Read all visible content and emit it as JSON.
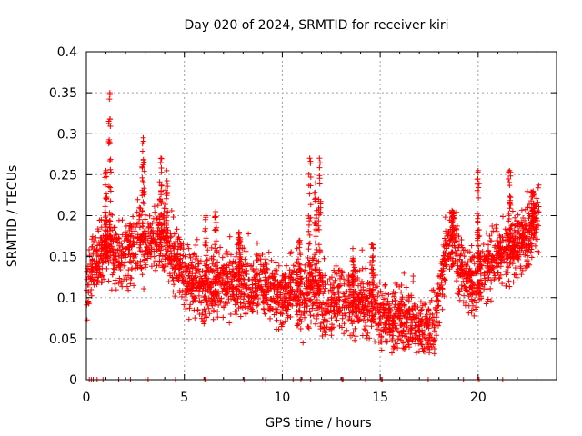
{
  "chart_data": {
    "type": "scatter",
    "title": "Day 020 of 2024, SRMTID for receiver kiri",
    "xlabel": "GPS time / hours",
    "ylabel": "SRMTID / TECUs",
    "xlim": [
      0,
      24
    ],
    "ylim": [
      0,
      0.4
    ],
    "x_ticks": [
      0,
      5,
      10,
      15,
      20
    ],
    "x_tick_labels": [
      "0",
      "5",
      "10",
      "15",
      "20"
    ],
    "y_ticks": [
      0,
      0.05,
      0.1,
      0.15,
      0.2,
      0.25,
      0.3,
      0.35,
      0.4
    ],
    "y_tick_labels": [
      "0",
      "0.05",
      "0.1",
      "0.15",
      "0.2",
      "0.25",
      "0.3",
      "0.35",
      "0.4"
    ],
    "grid": true,
    "marker": "plus",
    "colors": {
      "series": "#ff0000",
      "grid": "#a0a0a0",
      "axis": "#000000"
    },
    "trend_points": [
      [
        0.0,
        0.11
      ],
      [
        0.3,
        0.15
      ],
      [
        0.6,
        0.14
      ],
      [
        1.0,
        0.17
      ],
      [
        1.5,
        0.15
      ],
      [
        2.0,
        0.15
      ],
      [
        2.5,
        0.17
      ],
      [
        3.0,
        0.17
      ],
      [
        3.5,
        0.17
      ],
      [
        4.0,
        0.17
      ],
      [
        4.5,
        0.15
      ],
      [
        5.0,
        0.13
      ],
      [
        5.5,
        0.12
      ],
      [
        6.0,
        0.11
      ],
      [
        6.5,
        0.115
      ],
      [
        7.0,
        0.12
      ],
      [
        7.5,
        0.12
      ],
      [
        8.0,
        0.12
      ],
      [
        8.5,
        0.115
      ],
      [
        9.0,
        0.12
      ],
      [
        9.5,
        0.11
      ],
      [
        10.0,
        0.1
      ],
      [
        10.5,
        0.12
      ],
      [
        11.0,
        0.1
      ],
      [
        11.5,
        0.11
      ],
      [
        12.0,
        0.1
      ],
      [
        12.5,
        0.09
      ],
      [
        13.0,
        0.1
      ],
      [
        13.5,
        0.09
      ],
      [
        14.0,
        0.1
      ],
      [
        14.5,
        0.09
      ],
      [
        15.0,
        0.08
      ],
      [
        15.5,
        0.075
      ],
      [
        16.0,
        0.075
      ],
      [
        16.5,
        0.07
      ],
      [
        17.0,
        0.065
      ],
      [
        17.5,
        0.06
      ],
      [
        17.8,
        0.065
      ],
      [
        18.0,
        0.11
      ],
      [
        18.3,
        0.15
      ],
      [
        18.6,
        0.175
      ],
      [
        19.0,
        0.14
      ],
      [
        19.5,
        0.12
      ],
      [
        20.0,
        0.13
      ],
      [
        20.5,
        0.145
      ],
      [
        21.0,
        0.15
      ],
      [
        21.5,
        0.16
      ],
      [
        22.0,
        0.165
      ],
      [
        22.5,
        0.17
      ],
      [
        23.0,
        0.205
      ]
    ],
    "spikes": [
      {
        "x": 1.2,
        "peak": 0.35
      },
      {
        "x": 1.0,
        "peak": 0.255
      },
      {
        "x": 2.9,
        "peak": 0.295
      },
      {
        "x": 4.1,
        "peak": 0.255
      },
      {
        "x": 3.8,
        "peak": 0.27
      },
      {
        "x": 11.4,
        "peak": 0.27
      },
      {
        "x": 11.7,
        "peak": 0.24
      },
      {
        "x": 11.9,
        "peak": 0.27
      },
      {
        "x": 20.0,
        "peak": 0.255
      },
      {
        "x": 21.6,
        "peak": 0.255
      },
      {
        "x": 22.8,
        "peak": 0.23
      },
      {
        "x": 18.7,
        "peak": 0.205
      },
      {
        "x": 6.1,
        "peak": 0.2
      },
      {
        "x": 6.6,
        "peak": 0.205
      },
      {
        "x": 13.6,
        "peak": 0.16
      },
      {
        "x": 14.6,
        "peak": 0.165
      },
      {
        "x": 10.9,
        "peak": 0.17
      },
      {
        "x": 7.8,
        "peak": 0.18
      }
    ],
    "spread": 0.025,
    "point_density": 160,
    "zero_points": [
      0.15,
      0.25,
      0.35,
      0.55,
      0.85,
      1.65,
      2.25,
      3.15,
      4.55,
      6.05,
      6.1,
      8.05,
      9.15,
      10.55,
      10.95,
      11.45,
      13.05,
      13.1,
      14.25,
      15.05,
      15.1,
      17.45,
      19.25,
      19.95,
      20.05,
      21.25
    ]
  }
}
